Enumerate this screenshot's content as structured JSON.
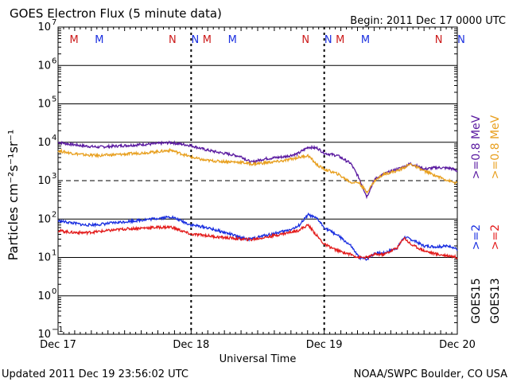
{
  "header": {
    "title": "GOES Electron Flux (5 minute data)",
    "begin": "Begin: 2011 Dec 17 0000 UTC"
  },
  "footer": {
    "updated": "Updated 2011 Dec 19 23:56:02 UTC",
    "credit": "NOAA/SWPC Boulder, CO USA"
  },
  "colors": {
    "goes15_gt2": "#1a2fe0",
    "goes13_gt2": "#e31a1a",
    "goes15_gt08": "#5a1aa0",
    "goes13_gt08": "#e8a020",
    "marker_M": "#cc1a1a",
    "marker_N_red": "#cc1a1a",
    "marker_N_blue": "#1a2fe0",
    "axis": "#000000"
  },
  "chart_data": {
    "type": "line",
    "title": "GOES Electron Flux (5 minute data)",
    "xlabel": "Universal Time",
    "ylabel": "Particles cm⁻²s⁻¹sr⁻¹",
    "yscale": "log",
    "ylim_exp": [
      -1,
      7
    ],
    "xlim_days": [
      0,
      3
    ],
    "x_tick_labels": [
      "Dec 17",
      "Dec 18",
      "Dec 19",
      "Dec 20"
    ],
    "y_tick_labels": [
      {
        "exp": 7,
        "base": "10",
        "sup": "7"
      },
      {
        "exp": 6,
        "base": "10",
        "sup": "6"
      },
      {
        "exp": 5,
        "base": "10",
        "sup": "5"
      },
      {
        "exp": 4,
        "base": "10",
        "sup": "4"
      },
      {
        "exp": 3,
        "base": "10",
        "sup": "3"
      },
      {
        "exp": 2,
        "base": "10",
        "sup": "2"
      },
      {
        "exp": 1,
        "base": "10",
        "sup": "1"
      },
      {
        "exp": 0,
        "base": "10",
        "sup": "0"
      },
      {
        "exp": -1,
        "base": "10",
        "sup": "−1"
      }
    ],
    "threshold_exp": 3,
    "markers": [
      {
        "label": "M",
        "day": 0.17,
        "color": "marker_M"
      },
      {
        "label": "M",
        "day": 0.36,
        "color": "marker_N_blue"
      },
      {
        "label": "N",
        "day": 0.91,
        "color": "marker_N_red"
      },
      {
        "label": "N",
        "day": 1.08,
        "color": "marker_N_blue"
      },
      {
        "label": "M",
        "day": 1.17,
        "color": "marker_M"
      },
      {
        "label": "M",
        "day": 1.36,
        "color": "marker_N_blue"
      },
      {
        "label": "N",
        "day": 1.91,
        "color": "marker_N_red"
      },
      {
        "label": "N",
        "day": 2.08,
        "color": "marker_N_blue"
      },
      {
        "label": "M",
        "day": 2.17,
        "color": "marker_M"
      },
      {
        "label": "M",
        "day": 2.36,
        "color": "marker_N_blue"
      },
      {
        "label": "N",
        "day": 2.91,
        "color": "marker_N_red"
      },
      {
        "label": "N",
        "day": 3.08,
        "color": "marker_N_blue"
      }
    ],
    "legend": {
      "gt08_goes15": ">=0.8 MeV",
      "gt2_goes15": ">=2",
      "gt08_goes13": ">=0.8 MeV",
      "gt2_goes13": ">=2",
      "sat15": "GOES15",
      "sat13": "GOES13"
    },
    "series": [
      {
        "name": "GOES15 >=0.8 MeV",
        "color": "goes15_gt08",
        "x": [
          0,
          0.1,
          0.2,
          0.3,
          0.5,
          0.7,
          0.85,
          1.0,
          1.1,
          1.2,
          1.3,
          1.38,
          1.45,
          1.55,
          1.7,
          1.8,
          1.88,
          1.95,
          2.0,
          2.1,
          2.2,
          2.26,
          2.32,
          2.38,
          2.45,
          2.55,
          2.6,
          2.65,
          2.75,
          2.85,
          2.95,
          3.0
        ],
        "y": [
          10000,
          8800,
          8000,
          7500,
          8200,
          9000,
          9800,
          8200,
          6500,
          5500,
          4800,
          4200,
          3000,
          3700,
          4200,
          5000,
          7500,
          7000,
          5200,
          4500,
          2800,
          1200,
          380,
          1100,
          1500,
          2000,
          2300,
          2800,
          2000,
          2200,
          2100,
          1800
        ]
      },
      {
        "name": "GOES13 >=0.8 MeV",
        "color": "goes13_gt08",
        "x": [
          0,
          0.1,
          0.2,
          0.3,
          0.5,
          0.7,
          0.85,
          1.0,
          1.1,
          1.2,
          1.3,
          1.38,
          1.45,
          1.55,
          1.7,
          1.8,
          1.88,
          1.95,
          2.0,
          2.1,
          2.2,
          2.26,
          2.32,
          2.38,
          2.45,
          2.55,
          2.6,
          2.65,
          2.75,
          2.85,
          2.95,
          3.0
        ],
        "y": [
          6000,
          5200,
          4700,
          4500,
          4900,
          5500,
          6200,
          4100,
          3400,
          3200,
          3100,
          3000,
          2700,
          2900,
          3300,
          4000,
          4500,
          2500,
          2000,
          1500,
          900,
          900,
          500,
          1000,
          1500,
          1800,
          2200,
          2700,
          1800,
          1300,
          950,
          850
        ]
      },
      {
        "name": "GOES15 >=2 MeV",
        "color": "goes15_gt2",
        "x": [
          0,
          0.1,
          0.2,
          0.3,
          0.5,
          0.7,
          0.85,
          1.0,
          1.1,
          1.2,
          1.3,
          1.38,
          1.45,
          1.55,
          1.7,
          1.8,
          1.88,
          1.95,
          2.0,
          2.1,
          2.2,
          2.26,
          2.32,
          2.38,
          2.45,
          2.55,
          2.6,
          2.65,
          2.75,
          2.85,
          2.95,
          3.0
        ],
        "y": [
          90,
          80,
          70,
          72,
          85,
          100,
          115,
          70,
          62,
          50,
          40,
          32,
          30,
          37,
          48,
          62,
          130,
          100,
          60,
          38,
          20,
          10,
          9,
          13,
          13,
          18,
          34,
          30,
          20,
          19,
          20,
          16
        ]
      },
      {
        "name": "GOES13 >=2 MeV",
        "color": "goes13_gt2",
        "x": [
          0,
          0.1,
          0.2,
          0.3,
          0.5,
          0.7,
          0.85,
          1.0,
          1.1,
          1.2,
          1.3,
          1.38,
          1.45,
          1.55,
          1.7,
          1.8,
          1.88,
          1.95,
          2.0,
          2.1,
          2.2,
          2.26,
          2.32,
          2.38,
          2.45,
          2.55,
          2.6,
          2.65,
          2.75,
          2.85,
          2.95,
          3.0
        ],
        "y": [
          50,
          45,
          44,
          47,
          55,
          60,
          62,
          40,
          38,
          34,
          32,
          30,
          29,
          33,
          42,
          50,
          70,
          35,
          22,
          15,
          12,
          10,
          10,
          12,
          12,
          18,
          33,
          22,
          15,
          12,
          11,
          10
        ]
      }
    ]
  }
}
